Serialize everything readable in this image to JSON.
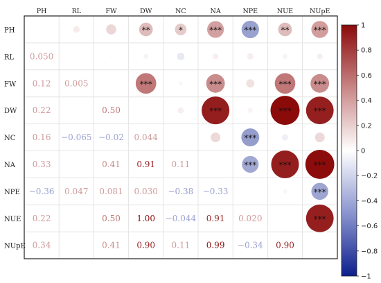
{
  "chart_data": {
    "type": "heatmap",
    "subtype": "correlation-matrix-mixed",
    "variables": [
      "PH",
      "RL",
      "FW",
      "DW",
      "NC",
      "NA",
      "NPE",
      "NUE",
      "NUpE"
    ],
    "lower_triangle_display": "numbers",
    "upper_triangle_display": "circles sized and colored by correlation, significance stars",
    "diagonal": "empty",
    "grid": true,
    "colormap": {
      "name": "blue-white-red",
      "low": "#0d1f8c",
      "mid": "#ffffff",
      "high": "#8b0a0a",
      "range": [
        -1,
        1
      ]
    },
    "colorbar": {
      "position": "right",
      "ticks": [
        "1",
        "0.8",
        "0.6",
        "0.4",
        "0.2",
        "0",
        "−0.2",
        "−0.4",
        "−0.6",
        "−0.8",
        "−1"
      ]
    },
    "matrix": [
      [
        null,
        0.05,
        0.12,
        0.22,
        0.16,
        0.33,
        -0.36,
        0.22,
        0.34
      ],
      [
        0.05,
        null,
        0.005,
        0.03,
        -0.065,
        0.04,
        0.047,
        0.03,
        0.04
      ],
      [
        0.12,
        0.005,
        null,
        0.5,
        -0.02,
        0.41,
        0.081,
        0.5,
        0.41
      ],
      [
        0.22,
        0.03,
        0.5,
        null,
        0.044,
        0.91,
        0.03,
        1.0,
        0.9
      ],
      [
        0.16,
        -0.065,
        -0.02,
        0.044,
        null,
        0.11,
        -0.38,
        -0.044,
        0.11
      ],
      [
        0.33,
        0.04,
        0.41,
        0.91,
        0.11,
        null,
        -0.33,
        0.91,
        0.99
      ],
      [
        -0.36,
        0.047,
        0.081,
        0.03,
        -0.38,
        -0.33,
        null,
        0.02,
        -0.34
      ],
      [
        0.22,
        0.03,
        0.5,
        1.0,
        -0.044,
        0.91,
        0.02,
        null,
        0.9
      ],
      [
        0.34,
        0.04,
        0.41,
        0.9,
        0.11,
        0.99,
        -0.34,
        0.9,
        null
      ]
    ],
    "lower_labels": [
      [],
      [
        "0.050"
      ],
      [
        "0.12",
        "0.005"
      ],
      [
        "0.22",
        "",
        "0.50"
      ],
      [
        "0.16",
        "−0.065",
        "−0.02",
        "0.044"
      ],
      [
        "0.33",
        "",
        "0.41",
        "0.91",
        "0.11"
      ],
      [
        "−0.36",
        "0.047",
        "0.081",
        "0.030",
        "−0.38",
        "−0.33"
      ],
      [
        "0.22",
        "",
        "0.50",
        "1.00",
        "−0.044",
        "0.91",
        "0.020"
      ],
      [
        "0.34",
        "",
        "0.41",
        "0.90",
        "0.11",
        "0.99",
        "−0.34",
        "0.90"
      ]
    ],
    "significance": {
      "PH": {
        "DW": "**",
        "NC": "*",
        "NA": "***",
        "NPE": "***",
        "NUE": "**",
        "NUpE": "***"
      },
      "FW": {
        "DW": "***",
        "NA": "***",
        "NUE": "***",
        "NUpE": "***"
      },
      "DW": {
        "NA": "***",
        "NUE": "***",
        "NUpE": "***"
      },
      "NC": {
        "NPE": "***"
      },
      "NA": {
        "NPE": "***",
        "NUE": "***",
        "NUpE": "***"
      },
      "NPE": {
        "NUpE": "***"
      },
      "NUE": {
        "NUpE": "***"
      }
    }
  }
}
